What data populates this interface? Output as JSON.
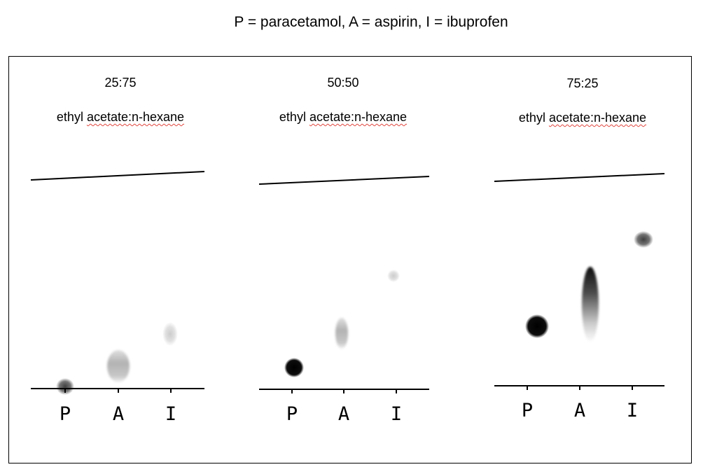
{
  "legend": "P = paracetamol, A = aspirin, I = ibuprofen",
  "lanes": [
    "P",
    "A",
    "I"
  ],
  "plates": [
    {
      "ratio": "25:75",
      "solvent_prefix": "ethyl ",
      "solvent_underlined": "acetate:n-hexane",
      "spots": [
        {
          "lane": "P",
          "rf": 0.0,
          "intensity": "medium",
          "shape": "round"
        },
        {
          "lane": "A",
          "rf": 0.1,
          "intensity": "light",
          "shape": "streak"
        },
        {
          "lane": "I",
          "rf": 0.26,
          "intensity": "faint",
          "shape": "oval"
        }
      ]
    },
    {
      "ratio": "50:50",
      "solvent_prefix": "ethyl ",
      "solvent_underlined": "acetate:n-hexane",
      "spots": [
        {
          "lane": "P",
          "rf": 0.11,
          "intensity": "dark",
          "shape": "round"
        },
        {
          "lane": "A",
          "rf": 0.27,
          "intensity": "light",
          "shape": "streak"
        },
        {
          "lane": "I",
          "rf": 0.56,
          "intensity": "faint",
          "shape": "round"
        }
      ]
    },
    {
      "ratio": "75:25",
      "solvent_prefix": "ethyl ",
      "solvent_underlined": "acetate:n-hexane",
      "spots": [
        {
          "lane": "P",
          "rf": 0.29,
          "intensity": "dark",
          "shape": "round"
        },
        {
          "lane": "A",
          "rf": 0.55,
          "intensity": "dark",
          "shape": "streak"
        },
        {
          "lane": "I",
          "rf": 0.83,
          "intensity": "medium",
          "shape": "round"
        }
      ]
    }
  ],
  "colors": {
    "ink": "#000000",
    "spelling_underline": "#e0463e",
    "background": "#ffffff"
  }
}
